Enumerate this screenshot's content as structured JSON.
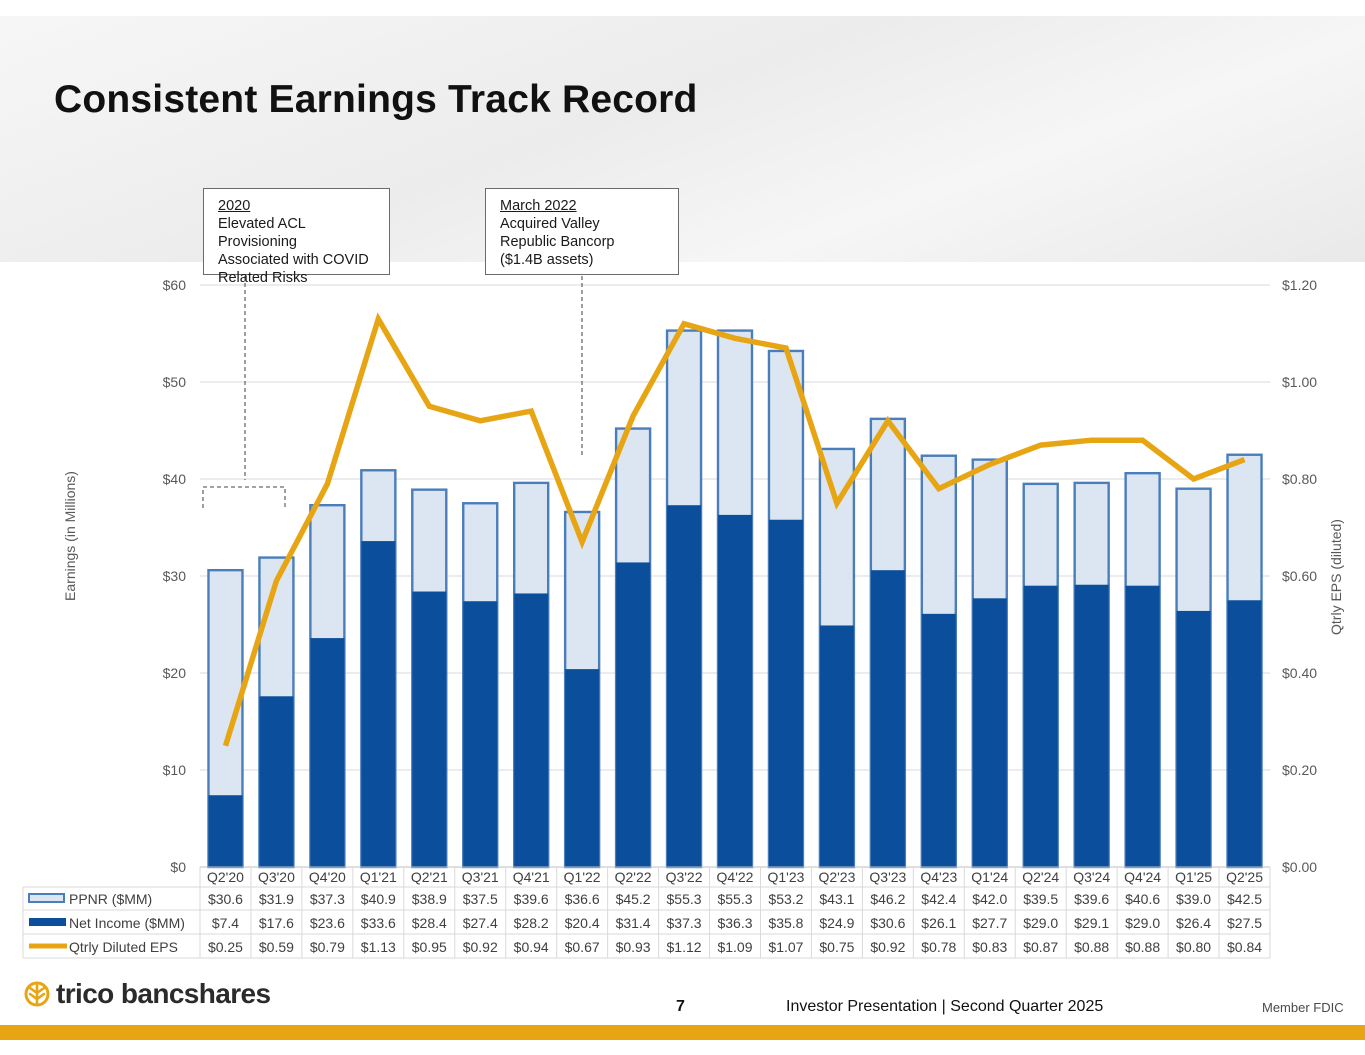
{
  "title": "Consistent Earnings Track Record",
  "callouts": [
    {
      "head": "2020",
      "lines": [
        "Elevated ACL Provisioning",
        "Associated with COVID",
        "Related Risks"
      ]
    },
    {
      "head": "March 2022",
      "lines": [
        "Acquired Valley",
        "Republic Bancorp",
        "($1.4B assets)"
      ]
    }
  ],
  "footer": {
    "brand": "trico bancshares",
    "page": "7",
    "text": "Investor Presentation  |  Second Quarter 2025",
    "member": "Member FDIC"
  },
  "colors": {
    "ppnr_fill": "#dce6f2",
    "ppnr_border": "#4a7ebb",
    "net_income": "#0b4f9c",
    "eps_line": "#e7a514",
    "grid": "#d9d9d9",
    "axis_text": "#595959",
    "brand_gold": "#e7a514"
  },
  "chart_data": {
    "type": "bar",
    "title": "",
    "xlabel": "",
    "ylabel": "Earnings (in Millions)",
    "y2label": "Qtrly EPS (diluted)",
    "ylim": [
      0,
      60
    ],
    "y2lim": [
      0,
      1.2
    ],
    "yticks": [
      "$0",
      "$10",
      "$20",
      "$30",
      "$40",
      "$50",
      "$60"
    ],
    "y2ticks": [
      "$0.00",
      "$0.20",
      "$0.40",
      "$0.60",
      "$0.80",
      "$1.00",
      "$1.20"
    ],
    "grid": true,
    "categories": [
      "Q2'20",
      "Q3'20",
      "Q4'20",
      "Q1'21",
      "Q2'21",
      "Q3'21",
      "Q4'21",
      "Q1'22",
      "Q2'22",
      "Q3'22",
      "Q4'22",
      "Q1'23",
      "Q2'23",
      "Q3'23",
      "Q4'23",
      "Q1'24",
      "Q2'24",
      "Q3'24",
      "Q4'24",
      "Q1'25",
      "Q2'25"
    ],
    "series": [
      {
        "name": "PPNR ($MM)",
        "type": "bar",
        "axis": "left",
        "values": [
          30.6,
          31.9,
          37.3,
          40.9,
          38.9,
          37.5,
          39.6,
          36.6,
          45.2,
          55.3,
          55.3,
          53.2,
          43.1,
          46.2,
          42.4,
          42.0,
          39.5,
          39.6,
          40.6,
          39.0,
          42.5
        ],
        "labels": [
          "$30.6",
          "$31.9",
          "$37.3",
          "$40.9",
          "$38.9",
          "$37.5",
          "$39.6",
          "$36.6",
          "$45.2",
          "$55.3",
          "$55.3",
          "$53.2",
          "$43.1",
          "$46.2",
          "$42.4",
          "$42.0",
          "$39.5",
          "$39.6",
          "$40.6",
          "$39.0",
          "$42.5"
        ]
      },
      {
        "name": "Net Income ($MM)",
        "type": "bar",
        "axis": "left",
        "values": [
          7.4,
          17.6,
          23.6,
          33.6,
          28.4,
          27.4,
          28.2,
          20.4,
          31.4,
          37.3,
          36.3,
          35.8,
          24.9,
          30.6,
          26.1,
          27.7,
          29.0,
          29.1,
          29.0,
          26.4,
          27.5
        ],
        "labels": [
          "$7.4",
          "$17.6",
          "$23.6",
          "$33.6",
          "$28.4",
          "$27.4",
          "$28.2",
          "$20.4",
          "$31.4",
          "$37.3",
          "$36.3",
          "$35.8",
          "$24.9",
          "$30.6",
          "$26.1",
          "$27.7",
          "$29.0",
          "$29.1",
          "$29.0",
          "$26.4",
          "$27.5"
        ]
      },
      {
        "name": "Qtrly Diluted EPS",
        "type": "line",
        "axis": "right",
        "values": [
          0.25,
          0.59,
          0.79,
          1.13,
          0.95,
          0.92,
          0.94,
          0.67,
          0.93,
          1.12,
          1.09,
          1.07,
          0.75,
          0.92,
          0.78,
          0.83,
          0.87,
          0.88,
          0.88,
          0.8,
          0.84
        ],
        "labels": [
          "$0.25",
          "$0.59",
          "$0.79",
          "$1.13",
          "$0.95",
          "$0.92",
          "$0.94",
          "$0.67",
          "$0.93",
          "$1.12",
          "$1.09",
          "$1.07",
          "$0.75",
          "$0.92",
          "$0.78",
          "$0.83",
          "$0.87",
          "$0.88",
          "$0.88",
          "$0.80",
          "$0.84"
        ]
      }
    ]
  }
}
